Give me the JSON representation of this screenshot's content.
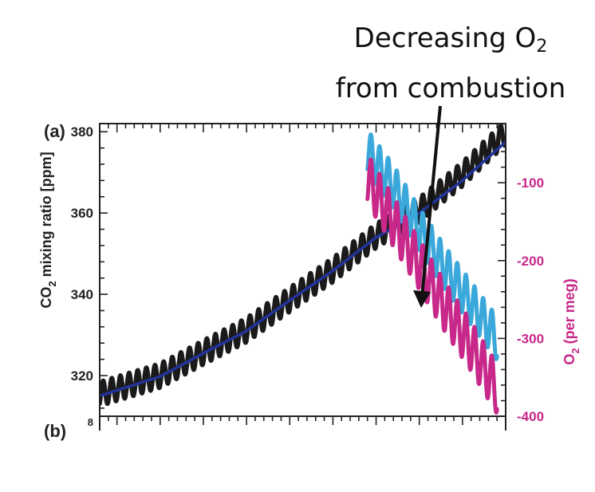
{
  "annotation": {
    "line1_main": "Decreasing  O",
    "line1_sub": "2",
    "line2": "from combustion"
  },
  "chart_data": {
    "type": "line",
    "panel_label": "(a)",
    "lower_panel_label": "(b)",
    "lower_panel_first_tick": "8",
    "xlim": [
      1958,
      2005
    ],
    "left_axis": {
      "label_prefix": "CO",
      "label_sub": "2",
      "label_suffix": " mixing ratio [ppm]",
      "ylim": [
        310,
        382
      ],
      "ticks": [
        320,
        340,
        360,
        380
      ],
      "tick_labels": [
        "320",
        "340",
        "360",
        "380"
      ]
    },
    "right_axis": {
      "label_prefix": "O",
      "label_sub": "2",
      "label_suffix": " (per meg)",
      "ylim": [
        -400,
        -24
      ],
      "ticks": [
        -100,
        -200,
        -300,
        -400
      ],
      "tick_labels": [
        "-100",
        "-200",
        "-300",
        "-400"
      ],
      "color": "#c7288a"
    },
    "series": [
      {
        "color": "#1a1a1a",
        "axis": "left",
        "x": [
          1958,
          1965,
          1970,
          1975,
          1980,
          1985,
          1990,
          1995,
          2000,
          2005
        ],
        "y": [
          315.5,
          320.0,
          325.7,
          331.2,
          338.7,
          346.0,
          354.4,
          360.8,
          369.6,
          379.8
        ],
        "seasonal_amplitude": 3.0
      },
      {
        "color": "#22349a",
        "axis": "left",
        "x": [
          1958,
          1965,
          1970,
          1975,
          1980,
          1985,
          1990,
          1995,
          2000,
          2005
        ],
        "y": [
          315.0,
          319.8,
          325.5,
          331.0,
          338.5,
          345.8,
          354.0,
          360.0,
          368.0,
          377.5
        ]
      },
      {
        "color": "#3aa8da",
        "axis": "right",
        "x": [
          1989,
          1992,
          1995,
          1998,
          2001,
          2004
        ],
        "y": [
          -60,
          -105,
          -160,
          -210,
          -255,
          -300
        ],
        "seasonal_amplitude": 28
      },
      {
        "color": "#c7288a",
        "axis": "right",
        "x": [
          1989,
          1992,
          1995,
          1998,
          2001,
          2004
        ],
        "y": [
          -95,
          -150,
          -205,
          -260,
          -310,
          -365
        ],
        "seasonal_amplitude": 32
      }
    ]
  }
}
